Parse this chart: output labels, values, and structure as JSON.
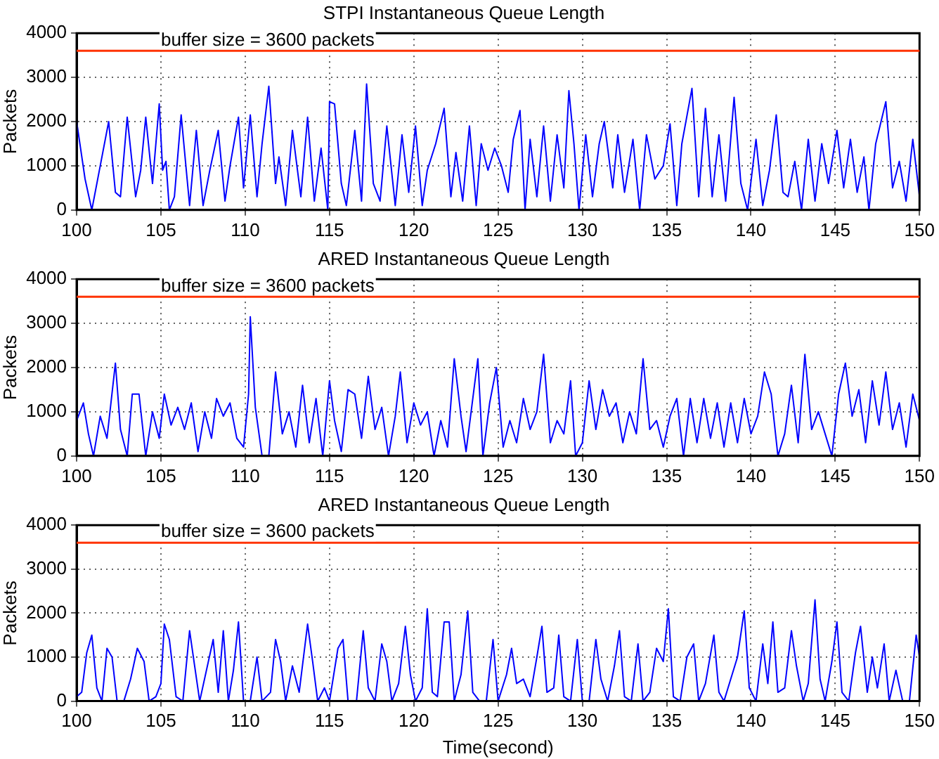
{
  "chart_data": [
    {
      "type": "line",
      "title": "STPI Instantaneous Queue Length",
      "ylabel": "Packets",
      "xlim": [
        100,
        150
      ],
      "xticks": [
        100,
        105,
        110,
        115,
        120,
        125,
        130,
        135,
        140,
        145,
        150
      ],
      "ylim": [
        0,
        4000
      ],
      "yticks": [
        0,
        1000,
        2000,
        3000,
        4000
      ],
      "grid": true,
      "marker": "none",
      "ref_lines": [
        {
          "axis": "y",
          "value": 3600,
          "label": "buffer size = 3600 packets",
          "color": "#ff3300"
        }
      ],
      "series": [
        {
          "color": "#0000ff",
          "x": [
            100,
            100.5,
            100.9,
            101.4,
            101.9,
            102.3,
            102.6,
            103.0,
            103.5,
            103.8,
            104.1,
            104.5,
            104.9,
            105.1,
            105.3,
            105.5,
            105.8,
            106.2,
            106.7,
            107.1,
            107.5,
            107.9,
            108.4,
            108.8,
            109.1,
            109.6,
            109.9,
            110.3,
            110.7,
            111.0,
            111.4,
            111.8,
            112.0,
            112.4,
            112.8,
            113.3,
            113.7,
            114.1,
            114.5,
            114.9,
            115.0,
            115.3,
            115.7,
            116.0,
            116.5,
            116.9,
            117.2,
            117.6,
            118.0,
            118.4,
            118.9,
            119.3,
            119.7,
            120.1,
            120.5,
            120.8,
            121.3,
            121.8,
            122.2,
            122.5,
            122.9,
            123.3,
            123.7,
            124.0,
            124.4,
            124.8,
            125.2,
            125.6,
            125.9,
            126.3,
            126.6,
            126.9,
            127.3,
            127.7,
            128.1,
            128.5,
            128.9,
            129.2,
            129.5,
            129.8,
            130.2,
            130.6,
            131.0,
            131.3,
            131.8,
            132.1,
            132.5,
            133.0,
            133.4,
            133.8,
            134.3,
            134.8,
            135.2,
            135.6,
            135.9,
            136.5,
            136.9,
            137.3,
            137.7,
            138.1,
            138.5,
            139.0,
            139.4,
            139.8,
            140.3,
            140.7,
            141.1,
            141.5,
            141.9,
            142.2,
            142.6,
            143.0,
            143.4,
            143.8,
            144.2,
            144.6,
            145.1,
            145.5,
            145.9,
            146.3,
            146.7,
            147.0,
            147.4,
            148.0,
            148.4,
            148.8,
            149.2,
            149.6,
            150
          ],
          "values": [
            2000,
            700,
            0,
            1000,
            2000,
            400,
            300,
            2100,
            300,
            900,
            2100,
            600,
            2400,
            900,
            1100,
            0,
            300,
            2150,
            100,
            1800,
            100,
            900,
            1800,
            200,
            1000,
            2100,
            500,
            2150,
            300,
            1500,
            2800,
            600,
            1200,
            100,
            1800,
            300,
            2100,
            200,
            1400,
            0,
            2450,
            2400,
            600,
            100,
            1800,
            200,
            2850,
            600,
            200,
            1900,
            100,
            1700,
            400,
            1900,
            100,
            900,
            1500,
            2300,
            300,
            1300,
            200,
            1900,
            100,
            1500,
            900,
            1400,
            1000,
            400,
            1600,
            2250,
            0,
            1600,
            300,
            1900,
            200,
            1700,
            500,
            2700,
            1500,
            0,
            1700,
            300,
            1500,
            2000,
            500,
            1700,
            400,
            1600,
            0,
            1700,
            700,
            1000,
            1950,
            100,
            1500,
            2750,
            300,
            2300,
            300,
            1700,
            200,
            2550,
            600,
            0,
            1600,
            100,
            900,
            2150,
            400,
            300,
            1100,
            0,
            1600,
            200,
            1500,
            600,
            1800,
            500,
            1600,
            400,
            1200,
            0,
            1500,
            2450,
            500,
            1100,
            200,
            1600,
            300
          ]
        }
      ]
    },
    {
      "type": "line",
      "title": "ARED Instantaneous Queue Length",
      "ylabel": "Packets",
      "xlim": [
        100,
        150
      ],
      "xticks": [
        100,
        105,
        110,
        115,
        120,
        125,
        130,
        135,
        140,
        145,
        150
      ],
      "ylim": [
        0,
        4000
      ],
      "yticks": [
        0,
        1000,
        2000,
        3000,
        4000
      ],
      "grid": true,
      "marker": "none",
      "ref_lines": [
        {
          "axis": "y",
          "value": 3600,
          "label": "buffer size = 3600 packets",
          "color": "#ff3300"
        }
      ],
      "series": [
        {
          "color": "#0000ff",
          "x": [
            100,
            100.4,
            100.7,
            101.0,
            101.4,
            101.8,
            102.3,
            102.6,
            103.0,
            103.3,
            103.7,
            104.1,
            104.5,
            104.9,
            105.2,
            105.6,
            106.0,
            106.4,
            106.8,
            107.2,
            107.6,
            108.0,
            108.3,
            108.7,
            109.1,
            109.5,
            109.9,
            110.2,
            110.3,
            110.6,
            111.0,
            111.4,
            111.8,
            112.2,
            112.6,
            113.0,
            113.4,
            113.8,
            114.2,
            114.6,
            115.0,
            115.3,
            115.7,
            116.1,
            116.5,
            116.9,
            117.3,
            117.7,
            118.1,
            118.5,
            118.9,
            119.2,
            119.6,
            120.0,
            120.4,
            120.8,
            121.2,
            121.6,
            122.0,
            122.4,
            122.8,
            123.1,
            123.5,
            123.8,
            124.1,
            124.5,
            124.9,
            125.3,
            125.7,
            126.1,
            126.5,
            126.9,
            127.3,
            127.7,
            128.1,
            128.5,
            128.9,
            129.3,
            129.6,
            130.0,
            130.4,
            130.8,
            131.2,
            131.6,
            132.0,
            132.4,
            132.8,
            133.2,
            133.6,
            134.0,
            134.4,
            134.8,
            135.2,
            135.6,
            136.0,
            136.4,
            136.8,
            137.2,
            137.6,
            138.0,
            138.4,
            138.8,
            139.2,
            139.6,
            140.0,
            140.4,
            140.8,
            141.2,
            141.6,
            142.0,
            142.4,
            142.8,
            143.2,
            143.6,
            144.0,
            144.4,
            144.8,
            145.2,
            145.6,
            146.0,
            146.4,
            146.8,
            147.2,
            147.6,
            148.0,
            148.4,
            148.8,
            149.2,
            149.6,
            150
          ],
          "values": [
            800,
            1200,
            500,
            0,
            900,
            400,
            2100,
            600,
            0,
            1400,
            1400,
            0,
            1000,
            400,
            1400,
            700,
            1100,
            600,
            1200,
            100,
            1000,
            400,
            1300,
            900,
            1200,
            400,
            200,
            1400,
            3150,
            1100,
            0,
            0,
            1900,
            500,
            1000,
            200,
            1600,
            300,
            1300,
            0,
            1700,
            800,
            100,
            1500,
            1400,
            400,
            1800,
            600,
            1100,
            0,
            900,
            1900,
            300,
            1200,
            700,
            1000,
            0,
            800,
            200,
            2200,
            900,
            100,
            1300,
            2200,
            0,
            1200,
            2000,
            200,
            800,
            300,
            1300,
            600,
            1000,
            2300,
            300,
            800,
            500,
            1700,
            0,
            300,
            1700,
            600,
            1500,
            900,
            1200,
            300,
            1000,
            500,
            2200,
            600,
            800,
            200,
            900,
            1300,
            0,
            1300,
            300,
            1300,
            400,
            1200,
            200,
            1200,
            300,
            1300,
            500,
            900,
            1900,
            1400,
            0,
            500,
            1600,
            300,
            2300,
            600,
            1000,
            500,
            0,
            1400,
            2100,
            900,
            1500,
            300,
            1700,
            700,
            1900,
            600,
            1200,
            200,
            1400,
            800
          ]
        }
      ]
    },
    {
      "type": "line",
      "title": "ARED Instantaneous Queue Length",
      "xlabel": "Time(second)",
      "ylabel": "Packets",
      "xlim": [
        100,
        150
      ],
      "xticks": [
        100,
        105,
        110,
        115,
        120,
        125,
        130,
        135,
        140,
        145,
        150
      ],
      "ylim": [
        0,
        4000
      ],
      "yticks": [
        0,
        1000,
        2000,
        3000,
        4000
      ],
      "grid": true,
      "marker": "none",
      "ref_lines": [
        {
          "axis": "y",
          "value": 3600,
          "label": "buffer size = 3600 packets",
          "color": "#ff3300"
        }
      ],
      "series": [
        {
          "color": "#0000ff",
          "x": [
            100,
            100.3,
            100.6,
            100.9,
            101.2,
            101.5,
            101.8,
            102.1,
            102.4,
            102.8,
            103.2,
            103.6,
            104.0,
            104.3,
            104.7,
            105.0,
            105.2,
            105.5,
            105.9,
            106.3,
            106.7,
            107.0,
            107.3,
            107.7,
            108.1,
            108.4,
            108.7,
            109.0,
            109.3,
            109.6,
            109.9,
            110.3,
            110.7,
            111.0,
            111.5,
            111.8,
            112.1,
            112.4,
            112.8,
            113.2,
            113.7,
            114.0,
            114.3,
            114.7,
            115.0,
            115.5,
            115.8,
            116.1,
            116.6,
            117.0,
            117.3,
            117.7,
            118.1,
            118.4,
            118.7,
            119.1,
            119.5,
            119.8,
            120.1,
            120.5,
            120.8,
            121.1,
            121.4,
            121.8,
            122.1,
            122.4,
            122.8,
            123.2,
            123.5,
            123.9,
            124.3,
            124.7,
            125.0,
            125.5,
            125.8,
            126.1,
            126.5,
            126.9,
            127.3,
            127.6,
            127.9,
            128.3,
            128.6,
            128.9,
            129.3,
            129.7,
            130.0,
            130.4,
            130.8,
            131.1,
            131.5,
            131.9,
            132.2,
            132.5,
            132.9,
            133.3,
            133.6,
            134.0,
            134.4,
            134.8,
            135.1,
            135.4,
            135.8,
            136.2,
            136.6,
            136.9,
            137.3,
            137.8,
            138.1,
            138.4,
            138.8,
            139.2,
            139.6,
            139.9,
            140.3,
            140.7,
            141.0,
            141.3,
            141.6,
            142.0,
            142.4,
            142.7,
            143.1,
            143.4,
            143.8,
            144.1,
            144.4,
            144.8,
            145.1,
            145.4,
            145.8,
            146.2,
            146.5,
            146.9,
            147.2,
            147.5,
            147.9,
            148.2,
            148.6,
            149.0,
            149.4,
            149.8,
            150
          ],
          "values": [
            100,
            200,
            1100,
            1500,
            300,
            0,
            1200,
            1000,
            0,
            0,
            500,
            1200,
            900,
            0,
            100,
            400,
            1750,
            1400,
            100,
            0,
            1600,
            800,
            0,
            700,
            1400,
            200,
            1600,
            0,
            700,
            1800,
            0,
            0,
            1000,
            0,
            200,
            1400,
            900,
            0,
            800,
            200,
            1750,
            900,
            0,
            300,
            0,
            1200,
            1400,
            0,
            0,
            1600,
            300,
            0,
            1300,
            900,
            0,
            400,
            1700,
            600,
            0,
            300,
            2100,
            200,
            100,
            1800,
            1800,
            0,
            600,
            2050,
            200,
            0,
            0,
            1400,
            0,
            600,
            1200,
            400,
            500,
            100,
            1000,
            1700,
            200,
            300,
            1500,
            100,
            0,
            1400,
            0,
            0,
            1400,
            500,
            0,
            800,
            1600,
            100,
            0,
            1300,
            0,
            200,
            1200,
            900,
            2100,
            100,
            0,
            1000,
            1300,
            0,
            400,
            1500,
            200,
            0,
            500,
            1000,
            2050,
            300,
            0,
            1300,
            400,
            1800,
            200,
            300,
            1600,
            800,
            0,
            400,
            2300,
            500,
            0,
            900,
            1800,
            200,
            0,
            1100,
            1700,
            200,
            1000,
            300,
            1300,
            0,
            700,
            0,
            0,
            1500,
            1000
          ]
        }
      ]
    }
  ]
}
